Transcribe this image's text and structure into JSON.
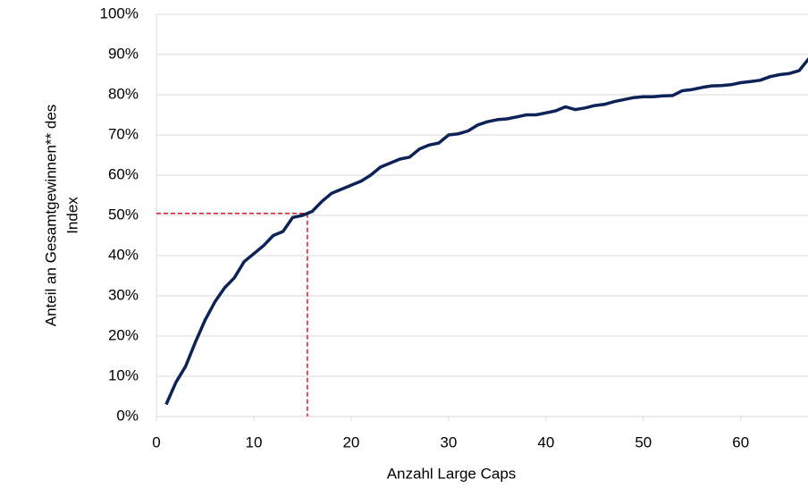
{
  "chart_data": {
    "type": "line",
    "x_label": "Anzahl Large Caps",
    "y_label": [
      "Anteil an Gesamtgewinnen** des",
      "Index"
    ],
    "xlim": [
      0,
      67
    ],
    "xticks": [
      0,
      10,
      20,
      30,
      40,
      50,
      60
    ],
    "ylim": [
      0,
      100
    ],
    "yticks": [
      {
        "value": 0,
        "label": "0%"
      },
      {
        "value": 10,
        "label": "10%"
      },
      {
        "value": 20,
        "label": "20%"
      },
      {
        "value": 30,
        "label": "30%"
      },
      {
        "value": 40,
        "label": "40%"
      },
      {
        "value": 50,
        "label": "50%"
      },
      {
        "value": 60,
        "label": "60%"
      },
      {
        "value": 70,
        "label": "70%"
      },
      {
        "value": 80,
        "label": "80%"
      },
      {
        "value": 90,
        "label": "90%"
      },
      {
        "value": 100,
        "label": "100%"
      }
    ],
    "grid": true,
    "series": [
      {
        "color": "#0d2357",
        "x": [
          1,
          2,
          3,
          4,
          5,
          6,
          7,
          8,
          9,
          10,
          11,
          12,
          13,
          14,
          15,
          16,
          17,
          18,
          19,
          20,
          21,
          22,
          23,
          24,
          25,
          26,
          27,
          28,
          29,
          30,
          31,
          32,
          33,
          34,
          35,
          36,
          37,
          38,
          39,
          40,
          41,
          42,
          43,
          44,
          45,
          46,
          47,
          48,
          49,
          50,
          51,
          52,
          53,
          54,
          55,
          56,
          57,
          58,
          59,
          60,
          61,
          62,
          63,
          64,
          65,
          66,
          67
        ],
        "values": [
          3,
          8.5,
          12.5,
          18.5,
          24,
          28.5,
          32,
          34.5,
          38.5,
          40.5,
          42.5,
          45,
          46,
          49.5,
          50,
          51,
          53.5,
          55.5,
          56.5,
          57.5,
          58.5,
          60,
          62,
          63,
          64,
          64.5,
          66.5,
          67.5,
          68,
          70,
          70.3,
          71,
          72.5,
          73.3,
          73.8,
          74,
          74.5,
          75,
          75,
          75.5,
          76,
          77,
          76.3,
          76.7,
          77.3,
          77.6,
          78.3,
          78.8,
          79.3,
          79.5,
          79.5,
          79.7,
          79.8,
          81,
          81.3,
          81.8,
          82.2,
          82.3,
          82.5,
          83,
          83.3,
          83.6,
          84.5,
          85,
          85.3,
          86,
          89
        ]
      }
    ],
    "reference": {
      "x": 15.5,
      "y": 50.5,
      "color": "#e0141e"
    }
  }
}
